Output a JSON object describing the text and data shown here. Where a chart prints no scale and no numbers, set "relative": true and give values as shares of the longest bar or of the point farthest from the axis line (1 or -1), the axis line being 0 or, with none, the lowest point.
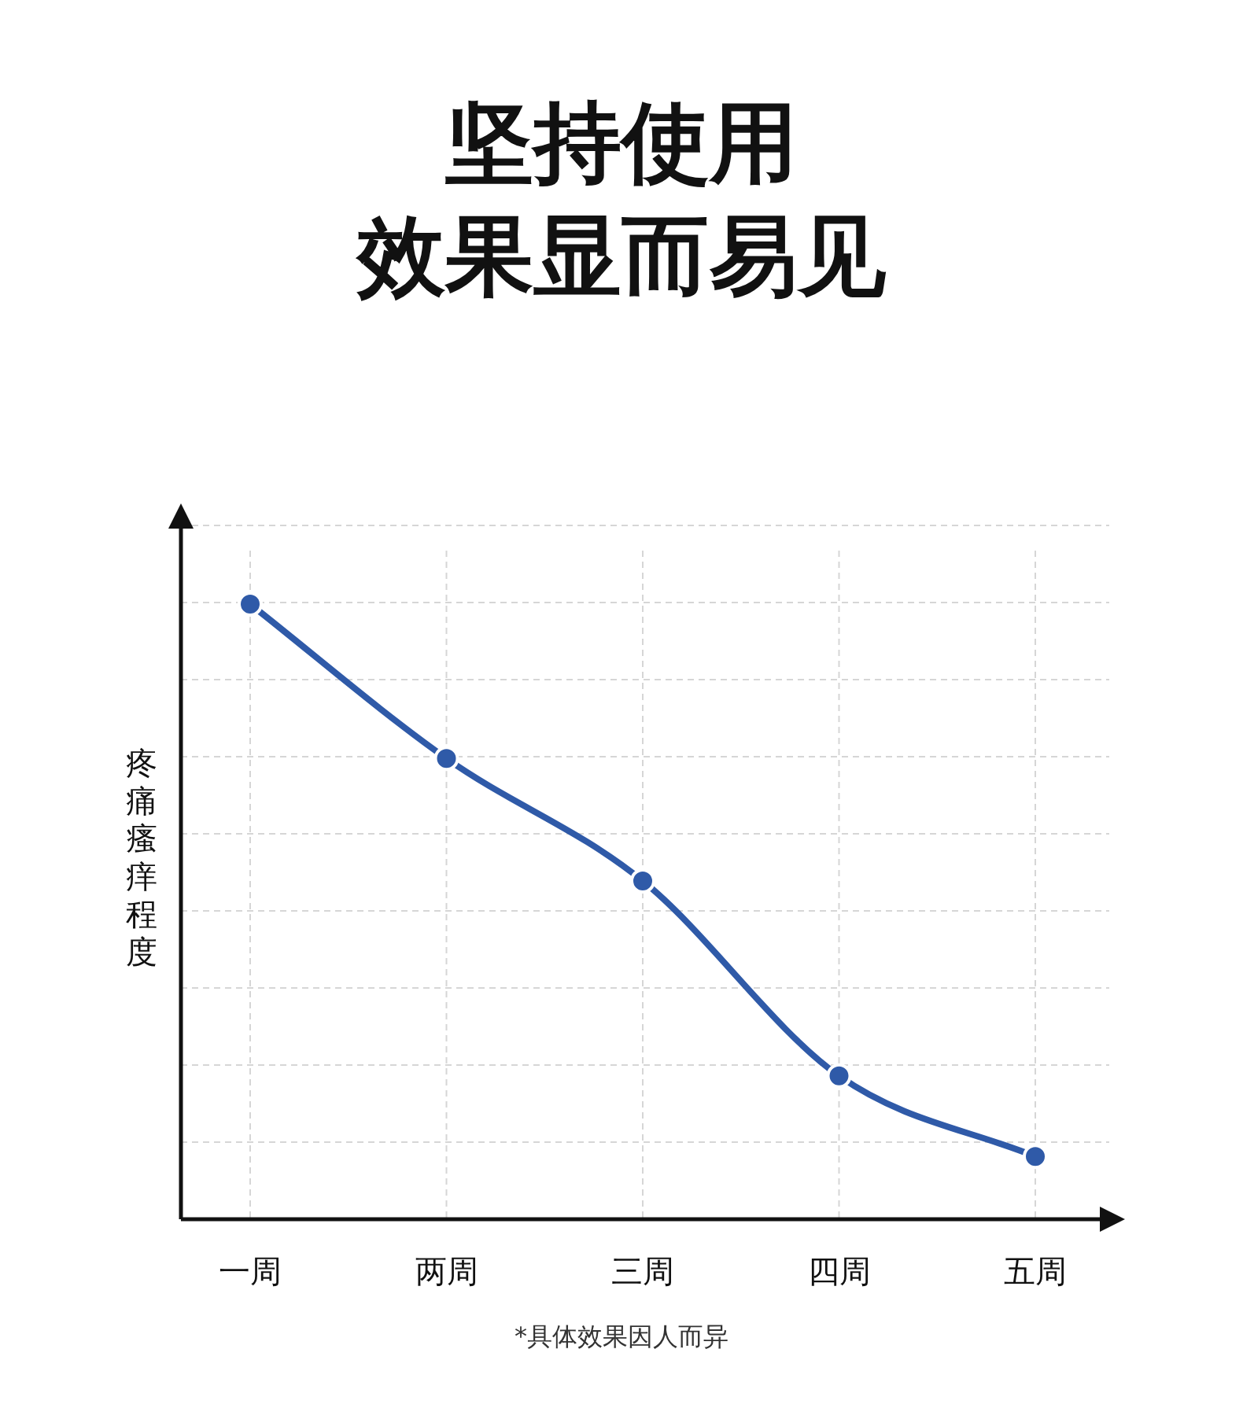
{
  "chart_data": {
    "type": "line",
    "title": "坚持使用",
    "subtitle": "效果显而易见",
    "ylabel": "疼痛瘙痒程度",
    "categories": [
      "一周",
      "两周",
      "三周",
      "四周",
      "五周"
    ],
    "series": [
      {
        "color": "#2f5aa8",
        "values": [
          1,
          0.749,
          0.55,
          0.233,
          0.102
        ]
      }
    ],
    "relative": true,
    "grid": true,
    "marker": "circle",
    "line_style": "solid",
    "annotations": [
      "*具体效果因人而异"
    ]
  }
}
